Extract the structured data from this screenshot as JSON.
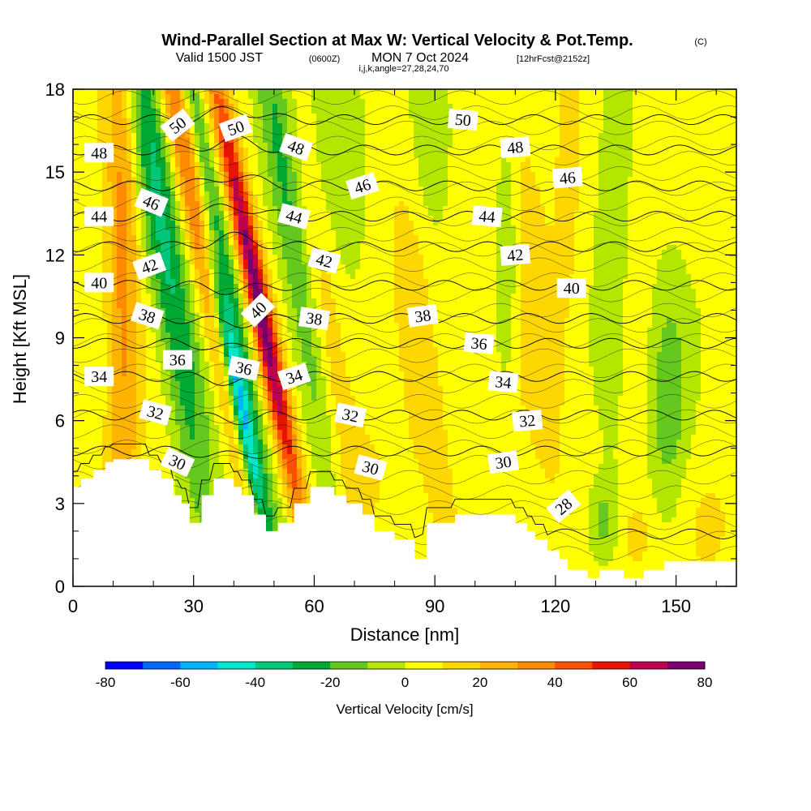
{
  "header": {
    "title": "Wind-Parallel Section at Max W: Vertical Velocity & Pot.Temp.",
    "copyright": "(C)",
    "valid_prefix": "Valid 1500 JST",
    "valid_utc": "(0600Z)",
    "valid_date": "MON 7 Oct 2024",
    "forecast_info": "[12hrFcst@2152z]",
    "indices": "i,j,k,angle=27,28,24,70"
  },
  "colors": {
    "background": "#ffffff",
    "terrain": "#ffffff",
    "contour_line": "#000000",
    "colorbar": [
      "#0000ff",
      "#0066ff",
      "#00b4ff",
      "#00e6c8",
      "#00c878",
      "#00aa32",
      "#64c81e",
      "#b4e600",
      "#ffff00",
      "#ffd700",
      "#ffb400",
      "#ff8c00",
      "#ff5000",
      "#e61400",
      "#be0050",
      "#78006e"
    ]
  },
  "chart_data": {
    "type": "heatmap",
    "xlabel": "Distance [nm]",
    "ylabel": "Height [Kft MSL]",
    "xlim": [
      0,
      165
    ],
    "ylim": [
      0,
      18
    ],
    "xticks": [
      0,
      30,
      60,
      90,
      120,
      150
    ],
    "yticks": [
      0,
      3,
      6,
      9,
      12,
      15,
      18
    ],
    "colorbar": {
      "title": "Vertical Velocity [cm/s]",
      "min": -80,
      "max": 80,
      "step": 10,
      "tick_values": [
        -80,
        -60,
        -40,
        -20,
        0,
        20,
        40,
        60,
        80
      ],
      "tick_labels": [
        "-80",
        "-60",
        "-40",
        "-20",
        "0",
        "20",
        "40",
        "60",
        "80"
      ]
    },
    "terrain_profile": [
      [
        0,
        3.6
      ],
      [
        2,
        3.6
      ],
      [
        2,
        3.9
      ],
      [
        5,
        3.9
      ],
      [
        5,
        4.2
      ],
      [
        8,
        4.2
      ],
      [
        8,
        4.5
      ],
      [
        10,
        4.5
      ],
      [
        10,
        4.6
      ],
      [
        19,
        4.6
      ],
      [
        19,
        4.2
      ],
      [
        22,
        4.2
      ],
      [
        22,
        3.9
      ],
      [
        25,
        3.9
      ],
      [
        25,
        3.3
      ],
      [
        27,
        3.3
      ],
      [
        27,
        3.0
      ],
      [
        29,
        3.0
      ],
      [
        29,
        2.3
      ],
      [
        32,
        2.3
      ],
      [
        32,
        3.3
      ],
      [
        35,
        3.3
      ],
      [
        35,
        3.9
      ],
      [
        40,
        3.9
      ],
      [
        40,
        3.6
      ],
      [
        42,
        3.6
      ],
      [
        42,
        3.3
      ],
      [
        45,
        3.3
      ],
      [
        45,
        2.6
      ],
      [
        48,
        2.6
      ],
      [
        48,
        2.0
      ],
      [
        51,
        2.0
      ],
      [
        51,
        2.3
      ],
      [
        55,
        2.3
      ],
      [
        55,
        3.0
      ],
      [
        59,
        3.0
      ],
      [
        59,
        3.6
      ],
      [
        65,
        3.6
      ],
      [
        65,
        3.3
      ],
      [
        68,
        3.3
      ],
      [
        68,
        3.0
      ],
      [
        72,
        3.0
      ],
      [
        72,
        2.6
      ],
      [
        75,
        2.6
      ],
      [
        75,
        2.0
      ],
      [
        80,
        2.0
      ],
      [
        80,
        1.7
      ],
      [
        85,
        1.7
      ],
      [
        85,
        1.0
      ],
      [
        88,
        1.0
      ],
      [
        88,
        2.3
      ],
      [
        95,
        2.3
      ],
      [
        95,
        2.6
      ],
      [
        110,
        2.6
      ],
      [
        110,
        2.3
      ],
      [
        113,
        2.3
      ],
      [
        113,
        2.0
      ],
      [
        115,
        2.0
      ],
      [
        115,
        1.7
      ],
      [
        118,
        1.7
      ],
      [
        118,
        1.3
      ],
      [
        121,
        1.3
      ],
      [
        121,
        1.0
      ],
      [
        123,
        1.0
      ],
      [
        123,
        0.6
      ],
      [
        128,
        0.6
      ],
      [
        128,
        0.3
      ],
      [
        131,
        0.3
      ],
      [
        131,
        0.6
      ],
      [
        137,
        0.6
      ],
      [
        137,
        0.3
      ],
      [
        142,
        0.3
      ],
      [
        142,
        0.6
      ],
      [
        147,
        0.6
      ],
      [
        147,
        0.9
      ],
      [
        165,
        0.9
      ]
    ],
    "w_features": [
      {
        "x": 12.5,
        "y": 12.0,
        "sx": 3.0,
        "sy": 10.0,
        "tilt": 0.0,
        "w": 30
      },
      {
        "x": 22.0,
        "y": 13.0,
        "sx": 3.5,
        "sy": 8.0,
        "tilt": -0.35,
        "w": -38
      },
      {
        "x": 31.0,
        "y": 13.5,
        "sx": 2.5,
        "sy": 8.0,
        "tilt": -0.45,
        "w": 48
      },
      {
        "x": 36.0,
        "y": 13.0,
        "sx": 1.8,
        "sy": 8.0,
        "tilt": -0.45,
        "w": -30
      },
      {
        "x": 41.0,
        "y": 7.0,
        "sx": 1.7,
        "sy": 4.2,
        "tilt": -0.45,
        "w": -78
      },
      {
        "x": 46.0,
        "y": 10.5,
        "sx": 2.0,
        "sy": 6.0,
        "tilt": -0.45,
        "w": 72
      },
      {
        "x": 55.0,
        "y": 12.5,
        "sx": 3.0,
        "sy": 8.0,
        "tilt": -0.35,
        "w": -28
      },
      {
        "x": 63.0,
        "y": 9.0,
        "sx": 3.5,
        "sy": 5.0,
        "tilt": -0.3,
        "w": 18
      },
      {
        "x": 66.0,
        "y": 16.0,
        "sx": 5.0,
        "sy": 3.0,
        "tilt": 0.0,
        "w": -14
      },
      {
        "x": 87.0,
        "y": 8.0,
        "sx": 3.0,
        "sy": 5.0,
        "tilt": -0.3,
        "w": 14
      },
      {
        "x": 90.0,
        "y": 17.0,
        "sx": 3.0,
        "sy": 2.5,
        "tilt": 0.0,
        "w": -14
      },
      {
        "x": 108.0,
        "y": 12.0,
        "sx": 2.0,
        "sy": 3.0,
        "tilt": 0.0,
        "w": -18
      },
      {
        "x": 114.0,
        "y": 11.0,
        "sx": 4.0,
        "sy": 6.0,
        "tilt": -0.2,
        "w": 12
      },
      {
        "x": 123.0,
        "y": 14.0,
        "sx": 2.5,
        "sy": 5.0,
        "tilt": 0.0,
        "w": 9
      },
      {
        "x": 134.0,
        "y": 13.0,
        "sx": 3.0,
        "sy": 6.0,
        "tilt": 0.0,
        "w": -10
      },
      {
        "x": 148.0,
        "y": 7.0,
        "sx": 3.5,
        "sy": 3.0,
        "tilt": 0.0,
        "w": -22
      },
      {
        "x": 132.0,
        "y": 2.3,
        "sx": 3.0,
        "sy": 1.0,
        "tilt": 0.0,
        "w": -18
      },
      {
        "x": 140.0,
        "y": 1.8,
        "sx": 4.0,
        "sy": 1.2,
        "tilt": 0.0,
        "w": 12
      },
      {
        "x": 158.0,
        "y": 2.5,
        "sx": 6.0,
        "sy": 1.5,
        "tilt": 0.0,
        "w": 6
      },
      {
        "x": 75.0,
        "y": 4.0,
        "sx": 8.0,
        "sy": 2.0,
        "tilt": 0.0,
        "w": 6
      }
    ],
    "theta_contours": [
      {
        "value": 28,
        "base": 1.9,
        "label": "28",
        "label_x": 110
      },
      {
        "value": 30,
        "base": 4.9,
        "label": "30",
        "label_x": 110
      },
      {
        "value": 32,
        "base": 6.2,
        "label": "32",
        "label_x": 110
      },
      {
        "value": 34,
        "base": 7.6,
        "label": "34",
        "label_x": 110
      },
      {
        "value": 36,
        "base": 8.8,
        "label": "36",
        "label_x": 110
      },
      {
        "value": 38,
        "base": 9.7,
        "label": "38",
        "label_x": 110
      },
      {
        "value": 40,
        "base": 10.9,
        "label": "40",
        "label_x": 110
      },
      {
        "value": 42,
        "base": 12.3,
        "label": "42",
        "label_x": 110
      },
      {
        "value": 44,
        "base": 13.4,
        "label": "44",
        "label_x": 110
      },
      {
        "value": 46,
        "base": 14.5,
        "label": "46",
        "label_x": 110
      },
      {
        "value": 48,
        "base": 15.8,
        "label": "48",
        "label_x": 110
      },
      {
        "value": 50,
        "base": 16.9,
        "label": "50",
        "label_x": 110
      }
    ],
    "contour_labels": [
      {
        "text": "50",
        "x": 26.0,
        "y": 16.7,
        "angle": -38
      },
      {
        "text": "50",
        "x": 40.5,
        "y": 16.6,
        "angle": -20
      },
      {
        "text": "48",
        "x": 6.5,
        "y": 15.7,
        "angle": 0
      },
      {
        "text": "48",
        "x": 55.5,
        "y": 15.9,
        "angle": 20
      },
      {
        "text": "46",
        "x": 19.5,
        "y": 13.9,
        "angle": 22
      },
      {
        "text": "46",
        "x": 72.0,
        "y": 14.5,
        "angle": -18
      },
      {
        "text": "44",
        "x": 6.5,
        "y": 13.4,
        "angle": 0
      },
      {
        "text": "44",
        "x": 55.0,
        "y": 13.4,
        "angle": 15
      },
      {
        "text": "42",
        "x": 19.0,
        "y": 11.6,
        "angle": -20
      },
      {
        "text": "42",
        "x": 62.5,
        "y": 11.8,
        "angle": 15
      },
      {
        "text": "40",
        "x": 6.5,
        "y": 11.0,
        "angle": 0
      },
      {
        "text": "40",
        "x": 46.0,
        "y": 10.0,
        "angle": -45
      },
      {
        "text": "38",
        "x": 18.5,
        "y": 9.8,
        "angle": 18
      },
      {
        "text": "38",
        "x": 60.0,
        "y": 9.7,
        "angle": 8
      },
      {
        "text": "36",
        "x": 26.0,
        "y": 8.2,
        "angle": 0
      },
      {
        "text": "36",
        "x": 42.5,
        "y": 7.9,
        "angle": 12
      },
      {
        "text": "34",
        "x": 6.5,
        "y": 7.6,
        "angle": 0
      },
      {
        "text": "34",
        "x": 55.0,
        "y": 7.6,
        "angle": -18
      },
      {
        "text": "32",
        "x": 20.5,
        "y": 6.3,
        "angle": 15
      },
      {
        "text": "32",
        "x": 69.0,
        "y": 6.2,
        "angle": 12
      },
      {
        "text": "30",
        "x": 26.0,
        "y": 4.5,
        "angle": 25
      },
      {
        "text": "30",
        "x": 74.0,
        "y": 4.3,
        "angle": 15
      },
      {
        "text": "38",
        "x": 87.0,
        "y": 9.8,
        "angle": -8
      },
      {
        "text": "36",
        "x": 101.0,
        "y": 8.8,
        "angle": 5
      },
      {
        "text": "34",
        "x": 107.0,
        "y": 7.4,
        "angle": 5
      },
      {
        "text": "32",
        "x": 113.0,
        "y": 6.0,
        "angle": -5
      },
      {
        "text": "30",
        "x": 107.0,
        "y": 4.5,
        "angle": -8
      },
      {
        "text": "28",
        "x": 122.0,
        "y": 2.9,
        "angle": -40
      },
      {
        "text": "50",
        "x": 97.0,
        "y": 16.9,
        "angle": 5
      },
      {
        "text": "48",
        "x": 110.0,
        "y": 15.9,
        "angle": -5
      },
      {
        "text": "46",
        "x": 123.0,
        "y": 14.8,
        "angle": -5
      },
      {
        "text": "44",
        "x": 103.0,
        "y": 13.4,
        "angle": 5
      },
      {
        "text": "42",
        "x": 110.0,
        "y": 12.0,
        "angle": -5
      },
      {
        "text": "40",
        "x": 124.0,
        "y": 10.8,
        "angle": 0
      }
    ]
  }
}
